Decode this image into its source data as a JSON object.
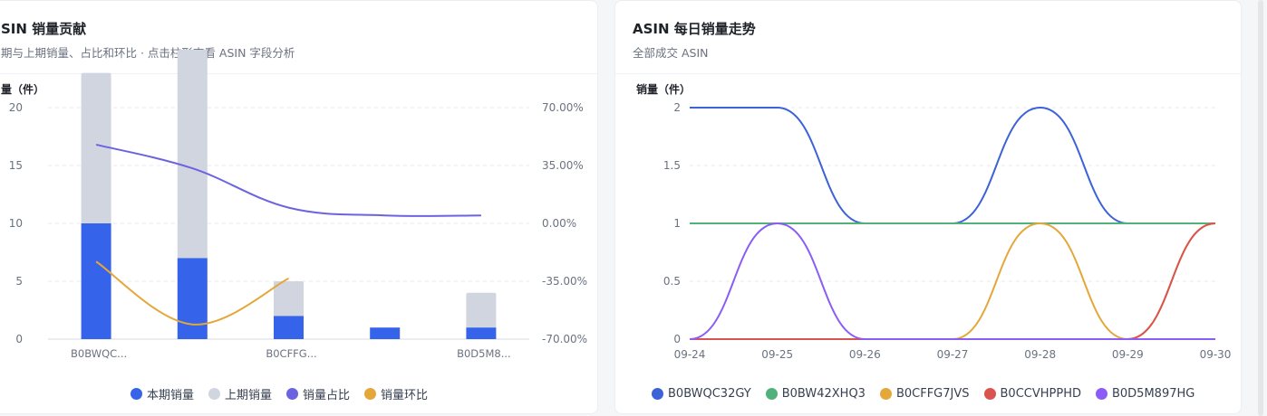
{
  "left_card": {
    "title": "SIN 销量贡献",
    "subtitle": "期与上期销量、占比和环比 · 点击柱形查看 ASIN 字段分析",
    "legend": [
      {
        "label": "本期销量",
        "color": "#3563e9"
      },
      {
        "label": "上期销量",
        "color": "#d1d5e0"
      },
      {
        "label": "销量占比",
        "color": "#6b63e0"
      },
      {
        "label": "销量环比",
        "color": "#e3a73a"
      }
    ]
  },
  "right_card": {
    "title": "ASIN 每日销量走势",
    "subtitle": "全部成交 ASIN",
    "legend": [
      {
        "label": "B0BWQC32GY",
        "color": "#3b62d6"
      },
      {
        "label": "B0BW42XHQ3",
        "color": "#52b07a"
      },
      {
        "label": "B0CFFG7JVS",
        "color": "#e3a73a"
      },
      {
        "label": "B0CCVHPPHD",
        "color": "#d9534f"
      },
      {
        "label": "B0D5M897HG",
        "color": "#8b5cf6"
      }
    ]
  },
  "chart_data": [
    {
      "type": "bar",
      "ylabel": "量（件）",
      "ylim": [
        0,
        20
      ],
      "yticks": [
        "0",
        "5",
        "10",
        "15",
        "20"
      ],
      "y2lim": [
        -70,
        70
      ],
      "y2ticks": [
        "-70.00%",
        "-35.00%",
        "0.00%",
        "35.00%",
        "70.00%"
      ],
      "categories": [
        "B0BWQC32GY",
        "B0BW42XHQ3",
        "B0CFFG7JVS",
        "B0CCVHPPHD",
        "B0D5M897HG"
      ],
      "x_tick_labels": [
        "B0BWQC...",
        "",
        "B0CFFG...",
        "",
        "B0D5M8..."
      ],
      "grid": true,
      "legend_position": "bottom",
      "series": [
        {
          "name": "本期销量",
          "kind": "bar",
          "color": "#3563e9",
          "values": [
            10,
            7,
            2,
            1,
            1
          ]
        },
        {
          "name": "上期销量",
          "kind": "bar",
          "color": "#d1d5e0",
          "values": [
            13,
            18,
            3,
            0,
            3
          ]
        },
        {
          "name": "销量占比",
          "kind": "line",
          "axis": "right",
          "color": "#6b63e0",
          "values": [
            47.6,
            33.3,
            9.5,
            4.8,
            4.8
          ]
        },
        {
          "name": "销量环比",
          "kind": "line",
          "axis": "right",
          "color": "#e3a73a",
          "values": [
            -23.1,
            -61.1,
            -33.3,
            null,
            null
          ]
        }
      ]
    },
    {
      "type": "line",
      "ylabel": "销量（件）",
      "ylim": [
        0,
        2
      ],
      "yticks": [
        "0",
        "0.5",
        "1",
        "1.5",
        "2"
      ],
      "x": [
        "09-24",
        "09-25",
        "09-26",
        "09-27",
        "09-28",
        "09-29",
        "09-30"
      ],
      "grid": true,
      "legend_position": "bottom",
      "series": [
        {
          "name": "B0BWQC32GY",
          "color": "#3b62d6",
          "values": [
            2,
            2,
            1,
            1,
            2,
            1,
            1
          ]
        },
        {
          "name": "B0BW42XHQ3",
          "color": "#52b07a",
          "values": [
            1,
            1,
            1,
            1,
            1,
            1,
            1
          ]
        },
        {
          "name": "B0CFFG7JVS",
          "color": "#e3a73a",
          "values": [
            0,
            0,
            0,
            0,
            1,
            0,
            1
          ]
        },
        {
          "name": "B0CCVHPPHD",
          "color": "#d9534f",
          "values": [
            0,
            0,
            0,
            0,
            0,
            0,
            1
          ]
        },
        {
          "name": "B0D5M897HG",
          "color": "#8b5cf6",
          "values": [
            0,
            1,
            0,
            0,
            0,
            0,
            0
          ]
        }
      ]
    }
  ]
}
